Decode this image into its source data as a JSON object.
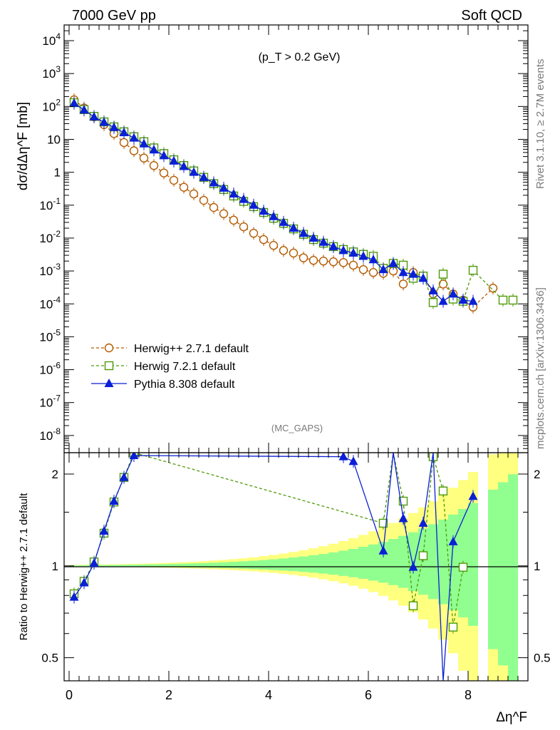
{
  "header": {
    "left": "7000 GeV pp",
    "right": "Soft QCD"
  },
  "side_labels": {
    "rivet": "Rivet 3.1.10, ≥ 2.7M events",
    "mcplots": "mcplots.cern.ch [arXiv:1306.3436]"
  },
  "chart_data": [
    {
      "type": "line",
      "panel": "main",
      "ylabel": "dσ/dΔη^F [mb]",
      "cut_label": "(p_T > 0.2 GeV)",
      "watermark": "(MC_GAPS)",
      "yscale": "log",
      "ylim": [
        3e-09,
        30000.0
      ],
      "xlim": [
        -0.1,
        9.2
      ],
      "legend_position": "bottom-left",
      "series": [
        {
          "name": "Herwig++ 2.7.1 default",
          "color": "#b35a00",
          "marker": "open-circle",
          "linestyle": "dashed",
          "x": [
            0.1,
            0.3,
            0.5,
            0.7,
            0.9,
            1.1,
            1.3,
            1.5,
            1.7,
            1.9,
            2.1,
            2.3,
            2.5,
            2.7,
            2.9,
            3.1,
            3.3,
            3.5,
            3.7,
            3.9,
            4.1,
            4.3,
            4.5,
            4.7,
            4.9,
            5.1,
            5.3,
            5.5,
            5.7,
            5.9,
            6.1,
            6.3,
            6.5,
            6.7,
            6.9,
            7.1,
            7.3,
            7.5,
            7.7,
            7.9,
            8.1,
            8.5
          ],
          "values": [
            160,
            90,
            48,
            28,
            15,
            8,
            4.5,
            2.7,
            1.6,
            0.95,
            0.57,
            0.35,
            0.22,
            0.14,
            0.085,
            0.055,
            0.035,
            0.022,
            0.014,
            0.009,
            0.006,
            0.0042,
            0.0035,
            0.0025,
            0.0021,
            0.002,
            0.0019,
            0.0018,
            0.0015,
            0.0011,
            0.0009,
            0.00085,
            0.001,
            0.0004,
            0.0009,
            0.0007,
            0.0002,
            0.0004,
            0.0002,
            0.00013,
            8e-05,
            0.0003
          ]
        },
        {
          "name": "Herwig 7.2.1 default",
          "color": "#4e9a06",
          "marker": "open-square",
          "linestyle": "dashed",
          "x": [
            0.1,
            0.3,
            0.5,
            0.7,
            0.9,
            1.1,
            1.3,
            1.5,
            1.7,
            1.9,
            2.1,
            2.3,
            2.5,
            2.7,
            2.9,
            3.1,
            3.3,
            3.5,
            3.7,
            3.9,
            4.1,
            4.3,
            4.5,
            4.7,
            4.9,
            5.1,
            5.3,
            5.5,
            5.7,
            5.9,
            6.1,
            6.3,
            6.5,
            6.7,
            6.9,
            7.1,
            7.3,
            7.5,
            7.7,
            7.9,
            8.1,
            8.7,
            8.9
          ],
          "values": [
            130,
            80,
            50,
            34,
            24,
            17,
            12,
            8.5,
            5.5,
            3.7,
            2.4,
            1.6,
            1.1,
            0.7,
            0.45,
            0.3,
            0.19,
            0.13,
            0.09,
            0.06,
            0.04,
            0.028,
            0.019,
            0.013,
            0.009,
            0.007,
            0.0055,
            0.0045,
            0.0038,
            0.0032,
            0.0028,
            0.0012,
            0.0017,
            0.0015,
            0.0006,
            0.0007,
            0.00011,
            0.0008,
            0.00014,
            0.00012,
            0.00105,
            0.00013,
            0.00013
          ]
        },
        {
          "name": "Pythia 8.308 default",
          "color": "#0a1fd6",
          "marker": "filled-triangle",
          "linestyle": "solid",
          "x": [
            0.1,
            0.3,
            0.5,
            0.7,
            0.9,
            1.1,
            1.3,
            1.5,
            1.7,
            1.9,
            2.1,
            2.3,
            2.5,
            2.7,
            2.9,
            3.1,
            3.3,
            3.5,
            3.7,
            3.9,
            4.1,
            4.3,
            4.5,
            4.7,
            4.9,
            5.1,
            5.3,
            5.5,
            5.7,
            5.9,
            6.1,
            6.3,
            6.5,
            6.7,
            6.9,
            7.1,
            7.3,
            7.5,
            7.7,
            7.9,
            8.1
          ],
          "values": [
            125,
            78,
            48,
            33,
            23,
            16,
            11,
            7.3,
            4.8,
            3.2,
            2.2,
            1.5,
            1.0,
            0.7,
            0.48,
            0.33,
            0.22,
            0.15,
            0.1,
            0.066,
            0.045,
            0.03,
            0.02,
            0.014,
            0.01,
            0.0075,
            0.0055,
            0.0042,
            0.0035,
            0.0028,
            0.0022,
            0.0011,
            0.0017,
            0.0009,
            0.0008,
            0.0006,
            0.00025,
            0.00012,
            0.0002,
            0.00013,
            0.00012
          ]
        }
      ]
    },
    {
      "type": "line",
      "panel": "ratio",
      "ylabel": "Ratio to Herwig++ 2.7.1 default",
      "xlabel": "Δη^F",
      "yscale": "log",
      "ylim": [
        0.42,
        2.35
      ],
      "x_ticks": [
        0,
        2,
        4,
        6,
        8
      ],
      "y_ticks": [
        0.5,
        1,
        2
      ],
      "reference": 1,
      "band_outer_color": "#ffff80",
      "band_inner_color": "#90ff90",
      "series": [
        {
          "name": "Herwig 7.2.1 default",
          "color": "#4e9a06",
          "marker": "open-square",
          "linestyle": "dashed",
          "x": [
            0.1,
            0.3,
            0.5,
            0.7,
            0.9,
            1.1,
            1.3,
            6.3,
            6.5,
            6.7,
            6.9,
            7.1,
            7.3,
            7.5,
            7.7,
            7.9
          ],
          "values": [
            0.81,
            0.89,
            1.03,
            1.28,
            1.62,
            1.95,
            2.35,
            1.38,
            2.5,
            1.63,
            0.74,
            1.08,
            2.28,
            1.76,
            0.63,
            0.99
          ]
        },
        {
          "name": "Pythia 8.308 default",
          "color": "#0a1fd6",
          "marker": "filled-triangle",
          "linestyle": "solid",
          "x": [
            0.1,
            0.3,
            0.5,
            0.7,
            0.9,
            1.1,
            1.3,
            5.5,
            5.7,
            6.3,
            6.5,
            6.7,
            6.9,
            7.1,
            7.3,
            7.5,
            7.7,
            8.1
          ],
          "values": [
            0.79,
            0.88,
            1.02,
            1.3,
            1.63,
            1.95,
            2.3,
            2.28,
            2.2,
            1.12,
            2.5,
            1.43,
            0.99,
            1.38,
            2.5,
            0.38,
            1.2,
            1.69
          ]
        }
      ]
    }
  ]
}
